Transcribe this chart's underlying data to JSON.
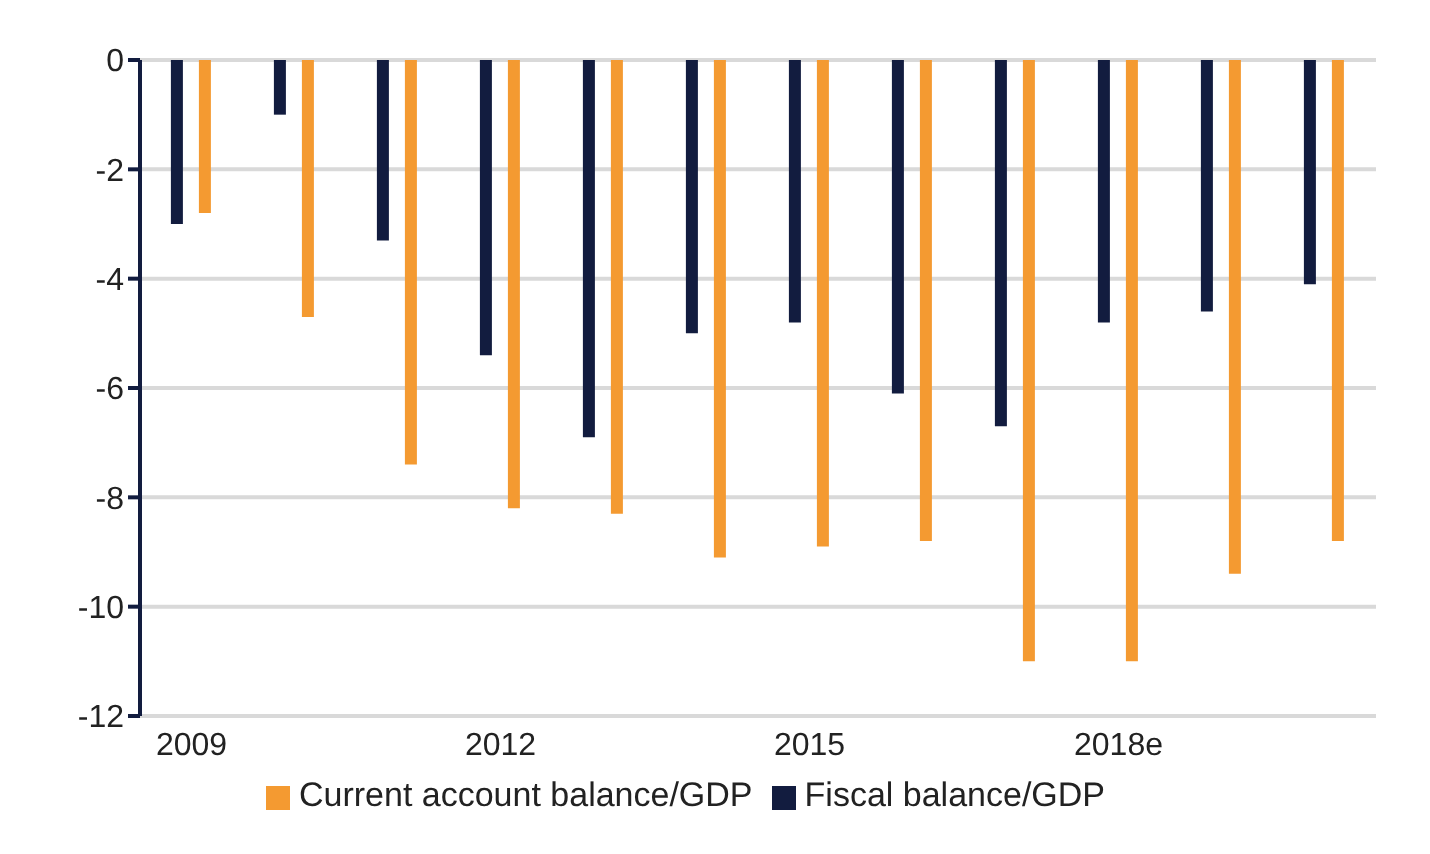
{
  "chart_data": {
    "type": "bar",
    "categories": [
      "2009",
      null,
      null,
      "2012",
      null,
      null,
      "2015",
      null,
      null,
      "2018e",
      null,
      null
    ],
    "series": [
      {
        "name": "Fiscal balance/GDP",
        "color": "#121c3f",
        "values": [
          -3.0,
          -1.0,
          -3.3,
          -5.4,
          -6.9,
          -5.0,
          -4.8,
          -6.1,
          -6.7,
          -4.8,
          -4.6,
          -4.1
        ]
      },
      {
        "name": "Current account balance/GDP",
        "color": "#f49a31",
        "values": [
          -2.8,
          -4.7,
          -7.4,
          -8.2,
          -8.3,
          -9.1,
          -8.9,
          -8.8,
          -11.0,
          -11.0,
          -9.4,
          -8.8
        ]
      }
    ],
    "ylim": [
      -12,
      0
    ],
    "yticks": [
      -12,
      -10,
      -8,
      -6,
      -4,
      -2,
      0
    ],
    "grid": "y",
    "legend": "bottom"
  }
}
